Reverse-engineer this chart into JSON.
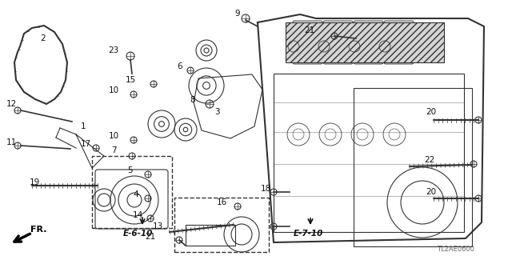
{
  "background_color": "#ffffff",
  "numbers_pos": [
    [
      "2",
      54,
      48
    ],
    [
      "12",
      14,
      130
    ],
    [
      "11",
      14,
      178
    ],
    [
      "19",
      43,
      228
    ],
    [
      "1",
      104,
      158
    ],
    [
      "17",
      107,
      180
    ],
    [
      "23",
      142,
      63
    ],
    [
      "15",
      163,
      100
    ],
    [
      "10",
      142,
      113
    ],
    [
      "7",
      142,
      188
    ],
    [
      "5",
      162,
      213
    ],
    [
      "4",
      170,
      243
    ],
    [
      "14",
      172,
      269
    ],
    [
      "13",
      197,
      283
    ],
    [
      "6",
      225,
      83
    ],
    [
      "8",
      241,
      125
    ],
    [
      "3",
      271,
      140
    ],
    [
      "9",
      297,
      17
    ],
    [
      "16",
      277,
      253
    ],
    [
      "18",
      332,
      236
    ],
    [
      "21",
      387,
      38
    ],
    [
      "21",
      188,
      296
    ],
    [
      "20",
      539,
      140
    ],
    [
      "20",
      539,
      240
    ],
    [
      "22",
      537,
      200
    ],
    [
      "10",
      142,
      170
    ]
  ],
  "label_e610": [
    172,
    292,
    "E-6-10"
  ],
  "label_e710": [
    385,
    292,
    "E-7-10"
  ],
  "label_tl": [
    570,
    312,
    "TL2AE0600"
  ],
  "label_fr": [
    38,
    287,
    "FR."
  ]
}
